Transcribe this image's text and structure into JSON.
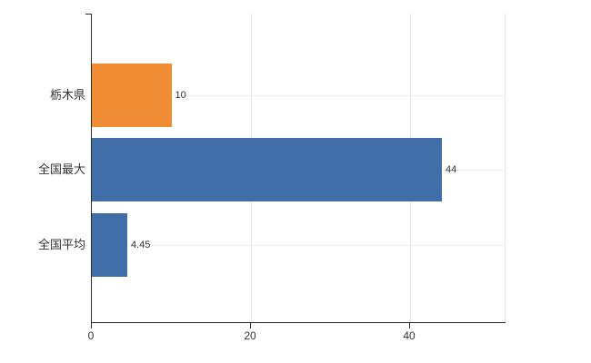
{
  "chart_data": {
    "type": "bar",
    "orientation": "horizontal",
    "title": "",
    "categories": [
      "栃木県",
      "全国最大",
      "全国平均"
    ],
    "values": [
      10,
      44,
      4.45
    ],
    "data_labels": [
      "10",
      "44",
      "4.45"
    ],
    "series_colors": [
      "#ef8c34",
      "#3f6ea8",
      "#3f6ea8"
    ],
    "x_ticks": [
      0,
      20,
      40
    ],
    "x_tick_labels": [
      "0",
      "20",
      "40"
    ],
    "xlim": [
      0,
      52
    ],
    "legend": "none",
    "grid": "on",
    "axis_color": "#2b2b2b",
    "grid_color": "#e6e6e6",
    "text_color": "#333333",
    "background_color": "#ffffff"
  }
}
